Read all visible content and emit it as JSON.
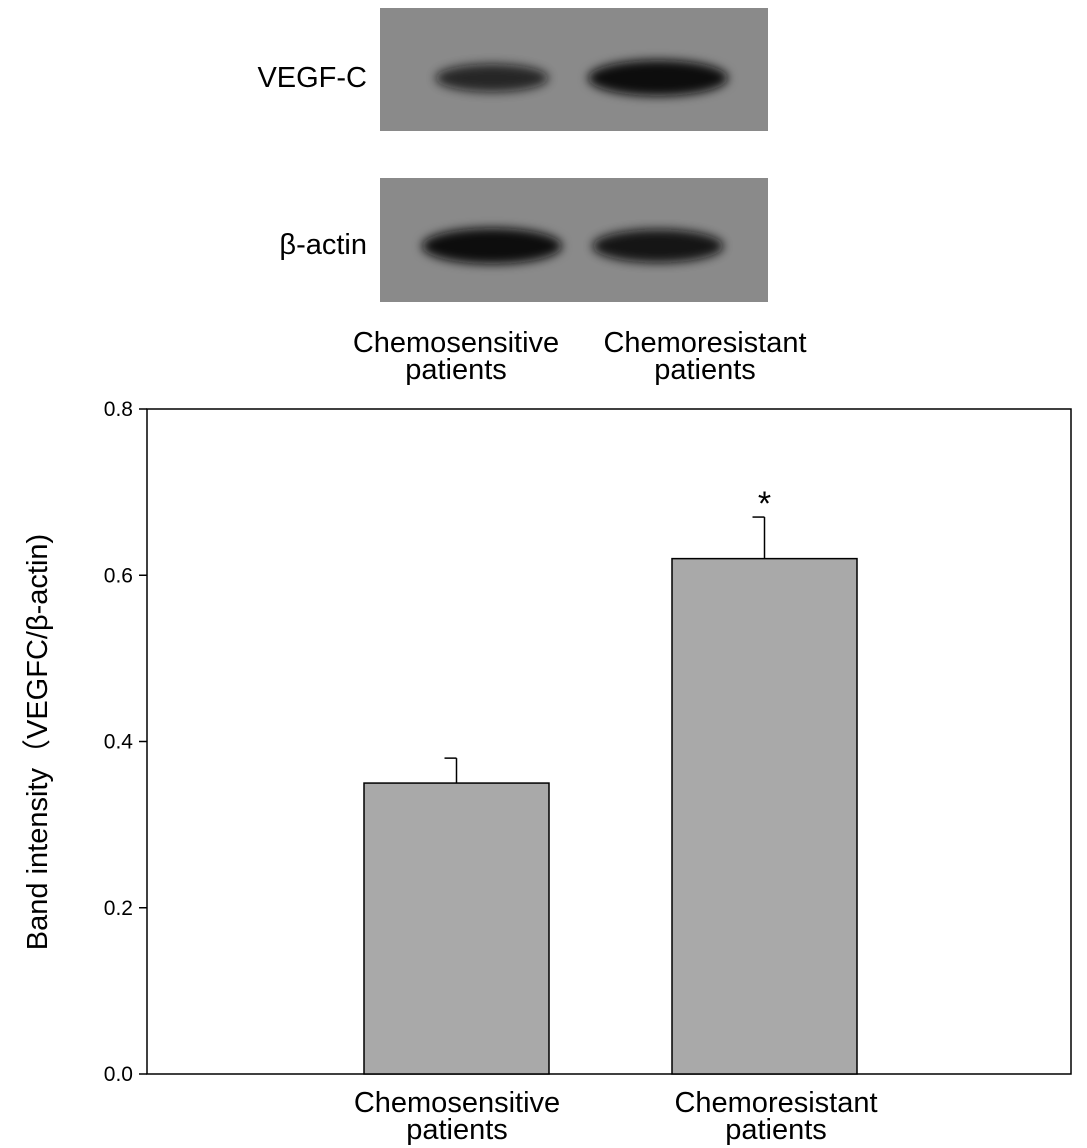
{
  "blot": {
    "rows": [
      {
        "label": "VEGF-C",
        "bands": [
          0.55,
          1.0
        ]
      },
      {
        "label": "β-actin",
        "bands": [
          1.0,
          0.85
        ]
      }
    ],
    "lanes": [
      {
        "line1": "Chemosensitive",
        "line2": "patients"
      },
      {
        "line1": "Chemoresistant",
        "line2": "patients"
      }
    ]
  },
  "chart_data": {
    "type": "bar",
    "categories": [
      {
        "line1": "Chemosensitive",
        "line2": "patients"
      },
      {
        "line1": "Chemoresistant",
        "line2": "patients"
      }
    ],
    "values": [
      0.35,
      0.62
    ],
    "errors": [
      0.03,
      0.05
    ],
    "annotations": [
      "",
      "*"
    ],
    "ylabel": "Band intensity（VEGFC/β-actin)",
    "ylim": [
      0,
      0.8
    ],
    "yticks": [
      "0.0",
      "0.2",
      "0.4",
      "0.6",
      "0.8"
    ],
    "grid": false,
    "bar_color": "#a9a9a9"
  },
  "colors": {
    "blot_background": "#8a8a8a",
    "band": "#0a0a0a"
  }
}
